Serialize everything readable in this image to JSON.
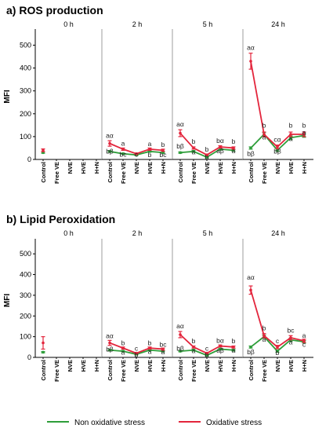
{
  "colors": {
    "non_oxidative": "#2e9e3a",
    "oxidative": "#e3253c",
    "axis": "#000000",
    "divider": "#9e9e9e"
  },
  "legend": {
    "placement": "bottom-center",
    "items": [
      "Non oxidative stress",
      "Oxidative stress"
    ]
  },
  "chart_data": [
    {
      "type": "line",
      "title": "a) ROS production",
      "ylabel": "MFI",
      "ylim": [
        0,
        550
      ],
      "yticks": [
        0,
        100,
        200,
        300,
        400,
        500
      ],
      "categories": [
        "Control",
        "Free VE",
        "NVE",
        "HVE",
        "H+N"
      ],
      "grid": false,
      "panels": [
        {
          "label": "0 h",
          "x": [
            "Control"
          ],
          "series": [
            {
              "name": "Non oxidative stress",
              "values": [
                30
              ],
              "err": [
                3
              ]
            },
            {
              "name": "Oxidative stress",
              "values": [
                40
              ],
              "err": [
                6
              ]
            }
          ],
          "annotations": []
        },
        {
          "label": "2 h",
          "x": [
            "Control",
            "Free VE",
            "NVE",
            "HVE",
            "H+N"
          ],
          "series": [
            {
              "name": "Non oxidative stress",
              "values": [
                35,
                25,
                20,
                35,
                30
              ],
              "err": [
                3,
                3,
                3,
                3,
                3
              ]
            },
            {
              "name": "Oxidative stress",
              "values": [
                70,
                45,
                25,
                45,
                40
              ],
              "err": [
                12,
                5,
                3,
                5,
                5
              ]
            }
          ],
          "annotations": [
            {
              "x": "Control",
              "text": "aα",
              "value": 95
            },
            {
              "x": "Control",
              "text": "bβ",
              "value": 25
            },
            {
              "x": "Free VE",
              "text": "a",
              "value": 60
            },
            {
              "x": "Free VE",
              "text": "bc",
              "value": 12
            },
            {
              "x": "NVE",
              "text": "c",
              "value": 12
            },
            {
              "x": "HVE",
              "text": "b",
              "value": 10
            },
            {
              "x": "HVE",
              "text": "a",
              "value": 58
            },
            {
              "x": "H+N",
              "text": "b",
              "value": 55
            },
            {
              "x": "H+N",
              "text": "bc",
              "value": 10
            }
          ]
        },
        {
          "label": "5 h",
          "x": [
            "Control",
            "Free VE",
            "NVE",
            "HVE",
            "H+N"
          ],
          "series": [
            {
              "name": "Non oxidative stress",
              "values": [
                30,
                35,
                10,
                45,
                40
              ],
              "err": [
                3,
                4,
                3,
                4,
                4
              ]
            },
            {
              "name": "Oxidative stress",
              "values": [
                115,
                50,
                20,
                55,
                50
              ],
              "err": [
                15,
                5,
                3,
                5,
                5
              ]
            }
          ],
          "annotations": [
            {
              "x": "Control",
              "text": "aα",
              "value": 145
            },
            {
              "x": "Control",
              "text": "bβ",
              "value": 48
            },
            {
              "x": "Free VE",
              "text": "b",
              "value": 68
            },
            {
              "x": "Free VE",
              "text": "a",
              "value": 22
            },
            {
              "x": "NVE",
              "text": "b",
              "value": 35
            },
            {
              "x": "NVE",
              "text": "b",
              "value": 0
            },
            {
              "x": "HVE",
              "text": "bα",
              "value": 72
            },
            {
              "x": "HVE",
              "text": "aβ",
              "value": 28
            },
            {
              "x": "H+N",
              "text": "b",
              "value": 68
            },
            {
              "x": "H+N",
              "text": "a",
              "value": 28
            }
          ]
        },
        {
          "label": "24 h",
          "x": [
            "Control",
            "Free VE",
            "NVE",
            "HVE",
            "H+N"
          ],
          "series": [
            {
              "name": "Non oxidative stress",
              "values": [
                50,
                110,
                40,
                95,
                105
              ],
              "err": [
                5,
                8,
                5,
                8,
                8
              ]
            },
            {
              "name": "Oxidative stress",
              "values": [
                430,
                110,
                55,
                110,
                110
              ],
              "err": [
                35,
                10,
                8,
                10,
                10
              ]
            }
          ],
          "annotations": [
            {
              "x": "Control",
              "text": "aα",
              "value": 480
            },
            {
              "x": "Control",
              "text": "bβ",
              "value": 15
            },
            {
              "x": "Free VE",
              "text": "b",
              "value": 140
            },
            {
              "x": "Free VE",
              "text": "a",
              "value": 88
            },
            {
              "x": "NVE",
              "text": "cα",
              "value": 78
            },
            {
              "x": "NVE",
              "text": "bβ",
              "value": 25
            },
            {
              "x": "HVE",
              "text": "b",
              "value": 140
            },
            {
              "x": "HVE",
              "text": "a",
              "value": 80
            },
            {
              "x": "H+N",
              "text": "b",
              "value": 140
            },
            {
              "x": "H+N",
              "text": "a",
              "value": 108
            }
          ]
        }
      ]
    },
    {
      "type": "line",
      "title": "b) Lipid Peroxidation",
      "ylabel": "MFI",
      "ylim": [
        0,
        550
      ],
      "yticks": [
        0,
        100,
        200,
        300,
        400,
        500
      ],
      "categories": [
        "Control",
        "Free VE",
        "NVE",
        "HVE",
        "H+N"
      ],
      "grid": false,
      "panels": [
        {
          "label": "0 h",
          "x": [
            "Control"
          ],
          "series": [
            {
              "name": "Non oxidative stress",
              "values": [
                25
              ],
              "err": [
                3
              ]
            },
            {
              "name": "Oxidative stress",
              "values": [
                70
              ],
              "err": [
                30
              ]
            }
          ],
          "annotations": []
        },
        {
          "label": "2 h",
          "x": [
            "Control",
            "Free VE",
            "NVE",
            "HVE",
            "H+N"
          ],
          "series": [
            {
              "name": "Non oxidative stress",
              "values": [
                35,
                30,
                15,
                35,
                30
              ],
              "err": [
                3,
                3,
                3,
                3,
                3
              ]
            },
            {
              "name": "Oxidative stress",
              "values": [
                70,
                45,
                20,
                45,
                40
              ],
              "err": [
                12,
                5,
                3,
                5,
                5
              ]
            }
          ],
          "annotations": [
            {
              "x": "Control",
              "text": "aα",
              "value": 92
            },
            {
              "x": "Control",
              "text": "bβ",
              "value": 28
            },
            {
              "x": "Free VE",
              "text": "b",
              "value": 58
            },
            {
              "x": "Free VE",
              "text": "a",
              "value": 14
            },
            {
              "x": "NVE",
              "text": "c",
              "value": 32
            },
            {
              "x": "NVE",
              "text": "b",
              "value": 2
            },
            {
              "x": "HVE",
              "text": "b",
              "value": 58
            },
            {
              "x": "HVE",
              "text": "a",
              "value": 18
            },
            {
              "x": "H+N",
              "text": "bc",
              "value": 52
            },
            {
              "x": "H+N",
              "text": "a",
              "value": 16
            }
          ]
        },
        {
          "label": "5 h",
          "x": [
            "Control",
            "Free VE",
            "NVE",
            "HVE",
            "H+N"
          ],
          "series": [
            {
              "name": "Non oxidative stress",
              "values": [
                30,
                35,
                10,
                40,
                35
              ],
              "err": [
                3,
                4,
                3,
                4,
                4
              ]
            },
            {
              "name": "Oxidative stress",
              "values": [
                110,
                50,
                20,
                55,
                50
              ],
              "err": [
                15,
                5,
                3,
                5,
                5
              ]
            }
          ],
          "annotations": [
            {
              "x": "Control",
              "text": "aα",
              "value": 140
            },
            {
              "x": "Control",
              "text": "bβ",
              "value": 32
            },
            {
              "x": "Free VE",
              "text": "b",
              "value": 68
            },
            {
              "x": "Free VE",
              "text": "a",
              "value": 20
            },
            {
              "x": "NVE",
              "text": "c",
              "value": 32
            },
            {
              "x": "NVE",
              "text": "b",
              "value": 0
            },
            {
              "x": "HVE",
              "text": "bα",
              "value": 70
            },
            {
              "x": "HVE",
              "text": "aβ",
              "value": 22
            },
            {
              "x": "H+N",
              "text": "b",
              "value": 68
            },
            {
              "x": "H+N",
              "text": "a",
              "value": 22
            }
          ]
        },
        {
          "label": "24 h",
          "x": [
            "Control",
            "Free VE",
            "NVE",
            "HVE",
            "H+N"
          ],
          "series": [
            {
              "name": "Non oxidative stress",
              "values": [
                50,
                100,
                30,
                85,
                75
              ],
              "err": [
                5,
                8,
                5,
                8,
                6
              ]
            },
            {
              "name": "Oxidative stress",
              "values": [
                325,
                105,
                50,
                95,
                80
              ],
              "err": [
                20,
                10,
                8,
                10,
                8
              ]
            }
          ],
          "annotations": [
            {
              "x": "Control",
              "text": "aα",
              "value": 375
            },
            {
              "x": "Control",
              "text": "bβ",
              "value": 15
            },
            {
              "x": "Free VE",
              "text": "b",
              "value": 130
            },
            {
              "x": "Free VE",
              "text": "a",
              "value": 75
            },
            {
              "x": "NVE",
              "text": "c",
              "value": 68
            },
            {
              "x": "NVE",
              "text": "b",
              "value": 12
            },
            {
              "x": "HVE",
              "text": "bc",
              "value": 120
            },
            {
              "x": "HVE",
              "text": "a",
              "value": 62
            },
            {
              "x": "H+N",
              "text": "a",
              "value": 95
            },
            {
              "x": "H+N",
              "text": "c",
              "value": 52
            }
          ]
        }
      ]
    }
  ]
}
